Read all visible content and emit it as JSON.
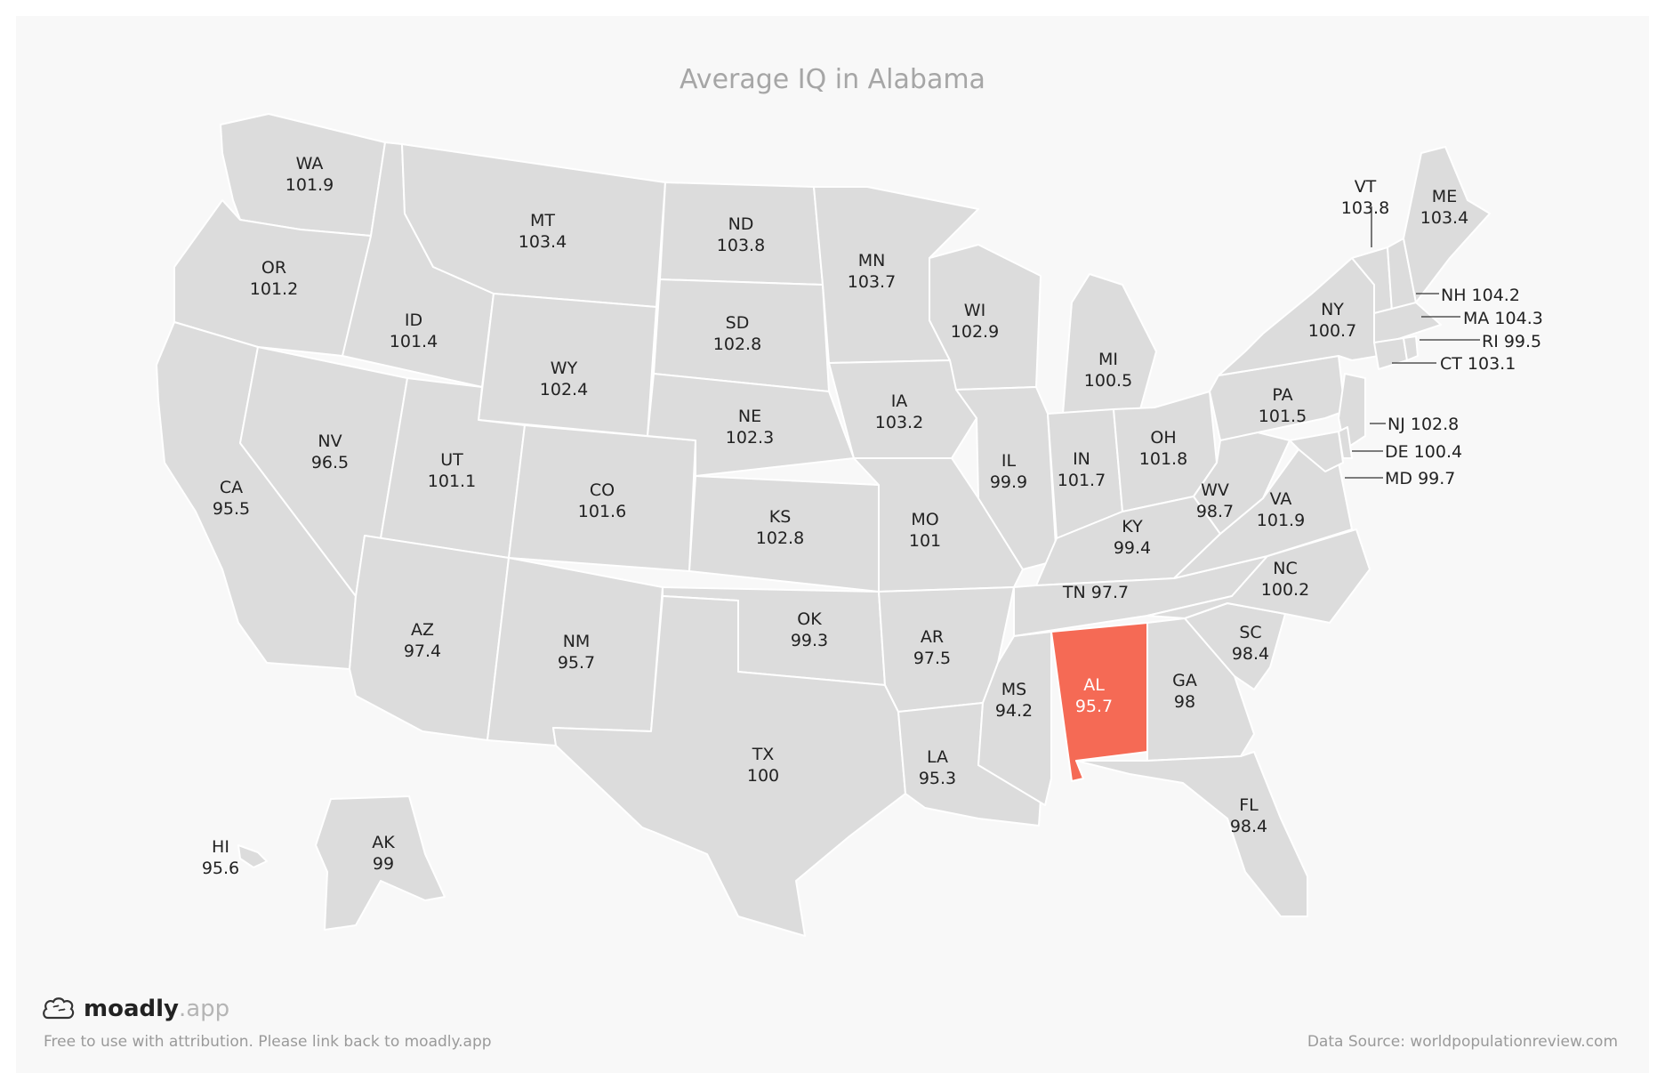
{
  "title": "Average IQ in Alabama",
  "highlight": "AL",
  "colors": {
    "base": "#dcdcdc",
    "highlight": "#f56a55",
    "border": "#ffffff",
    "background": "#f8f8f8"
  },
  "states": [
    {
      "code": "WA",
      "value": "101.9"
    },
    {
      "code": "OR",
      "value": "101.2"
    },
    {
      "code": "CA",
      "value": "95.5"
    },
    {
      "code": "NV",
      "value": "96.5"
    },
    {
      "code": "ID",
      "value": "101.4"
    },
    {
      "code": "MT",
      "value": "103.4"
    },
    {
      "code": "WY",
      "value": "102.4"
    },
    {
      "code": "UT",
      "value": "101.1"
    },
    {
      "code": "AZ",
      "value": "97.4"
    },
    {
      "code": "CO",
      "value": "101.6"
    },
    {
      "code": "NM",
      "value": "95.7"
    },
    {
      "code": "ND",
      "value": "103.8"
    },
    {
      "code": "SD",
      "value": "102.8"
    },
    {
      "code": "NE",
      "value": "102.3"
    },
    {
      "code": "KS",
      "value": "102.8"
    },
    {
      "code": "OK",
      "value": "99.3"
    },
    {
      "code": "TX",
      "value": "100"
    },
    {
      "code": "MN",
      "value": "103.7"
    },
    {
      "code": "IA",
      "value": "103.2"
    },
    {
      "code": "MO",
      "value": "101"
    },
    {
      "code": "AR",
      "value": "97.5"
    },
    {
      "code": "LA",
      "value": "95.3"
    },
    {
      "code": "WI",
      "value": "102.9"
    },
    {
      "code": "IL",
      "value": "99.9"
    },
    {
      "code": "MI",
      "value": "100.5"
    },
    {
      "code": "IN",
      "value": "101.7"
    },
    {
      "code": "OH",
      "value": "101.8"
    },
    {
      "code": "KY",
      "value": "99.4"
    },
    {
      "code": "TN",
      "value": "97.7"
    },
    {
      "code": "MS",
      "value": "94.2"
    },
    {
      "code": "AL",
      "value": "95.7"
    },
    {
      "code": "GA",
      "value": "98"
    },
    {
      "code": "FL",
      "value": "98.4"
    },
    {
      "code": "SC",
      "value": "98.4"
    },
    {
      "code": "NC",
      "value": "100.2"
    },
    {
      "code": "VA",
      "value": "101.9"
    },
    {
      "code": "WV",
      "value": "98.7"
    },
    {
      "code": "PA",
      "value": "101.5"
    },
    {
      "code": "NY",
      "value": "100.7"
    },
    {
      "code": "VT",
      "value": "103.8"
    },
    {
      "code": "ME",
      "value": "103.4"
    },
    {
      "code": "NH",
      "value": "104.2"
    },
    {
      "code": "MA",
      "value": "104.3"
    },
    {
      "code": "RI",
      "value": "99.5"
    },
    {
      "code": "CT",
      "value": "103.1"
    },
    {
      "code": "NJ",
      "value": "102.8"
    },
    {
      "code": "DE",
      "value": "100.4"
    },
    {
      "code": "MD",
      "value": "99.7"
    },
    {
      "code": "AK",
      "value": "99"
    },
    {
      "code": "HI",
      "value": "95.6"
    }
  ],
  "logo": {
    "name": "moadly",
    "suffix": ".app",
    "icon": "brain-icon"
  },
  "attribution": "Free to use with attribution. Please link back to moadly.app",
  "source": "Data Source: worldpopulationreview.com"
}
